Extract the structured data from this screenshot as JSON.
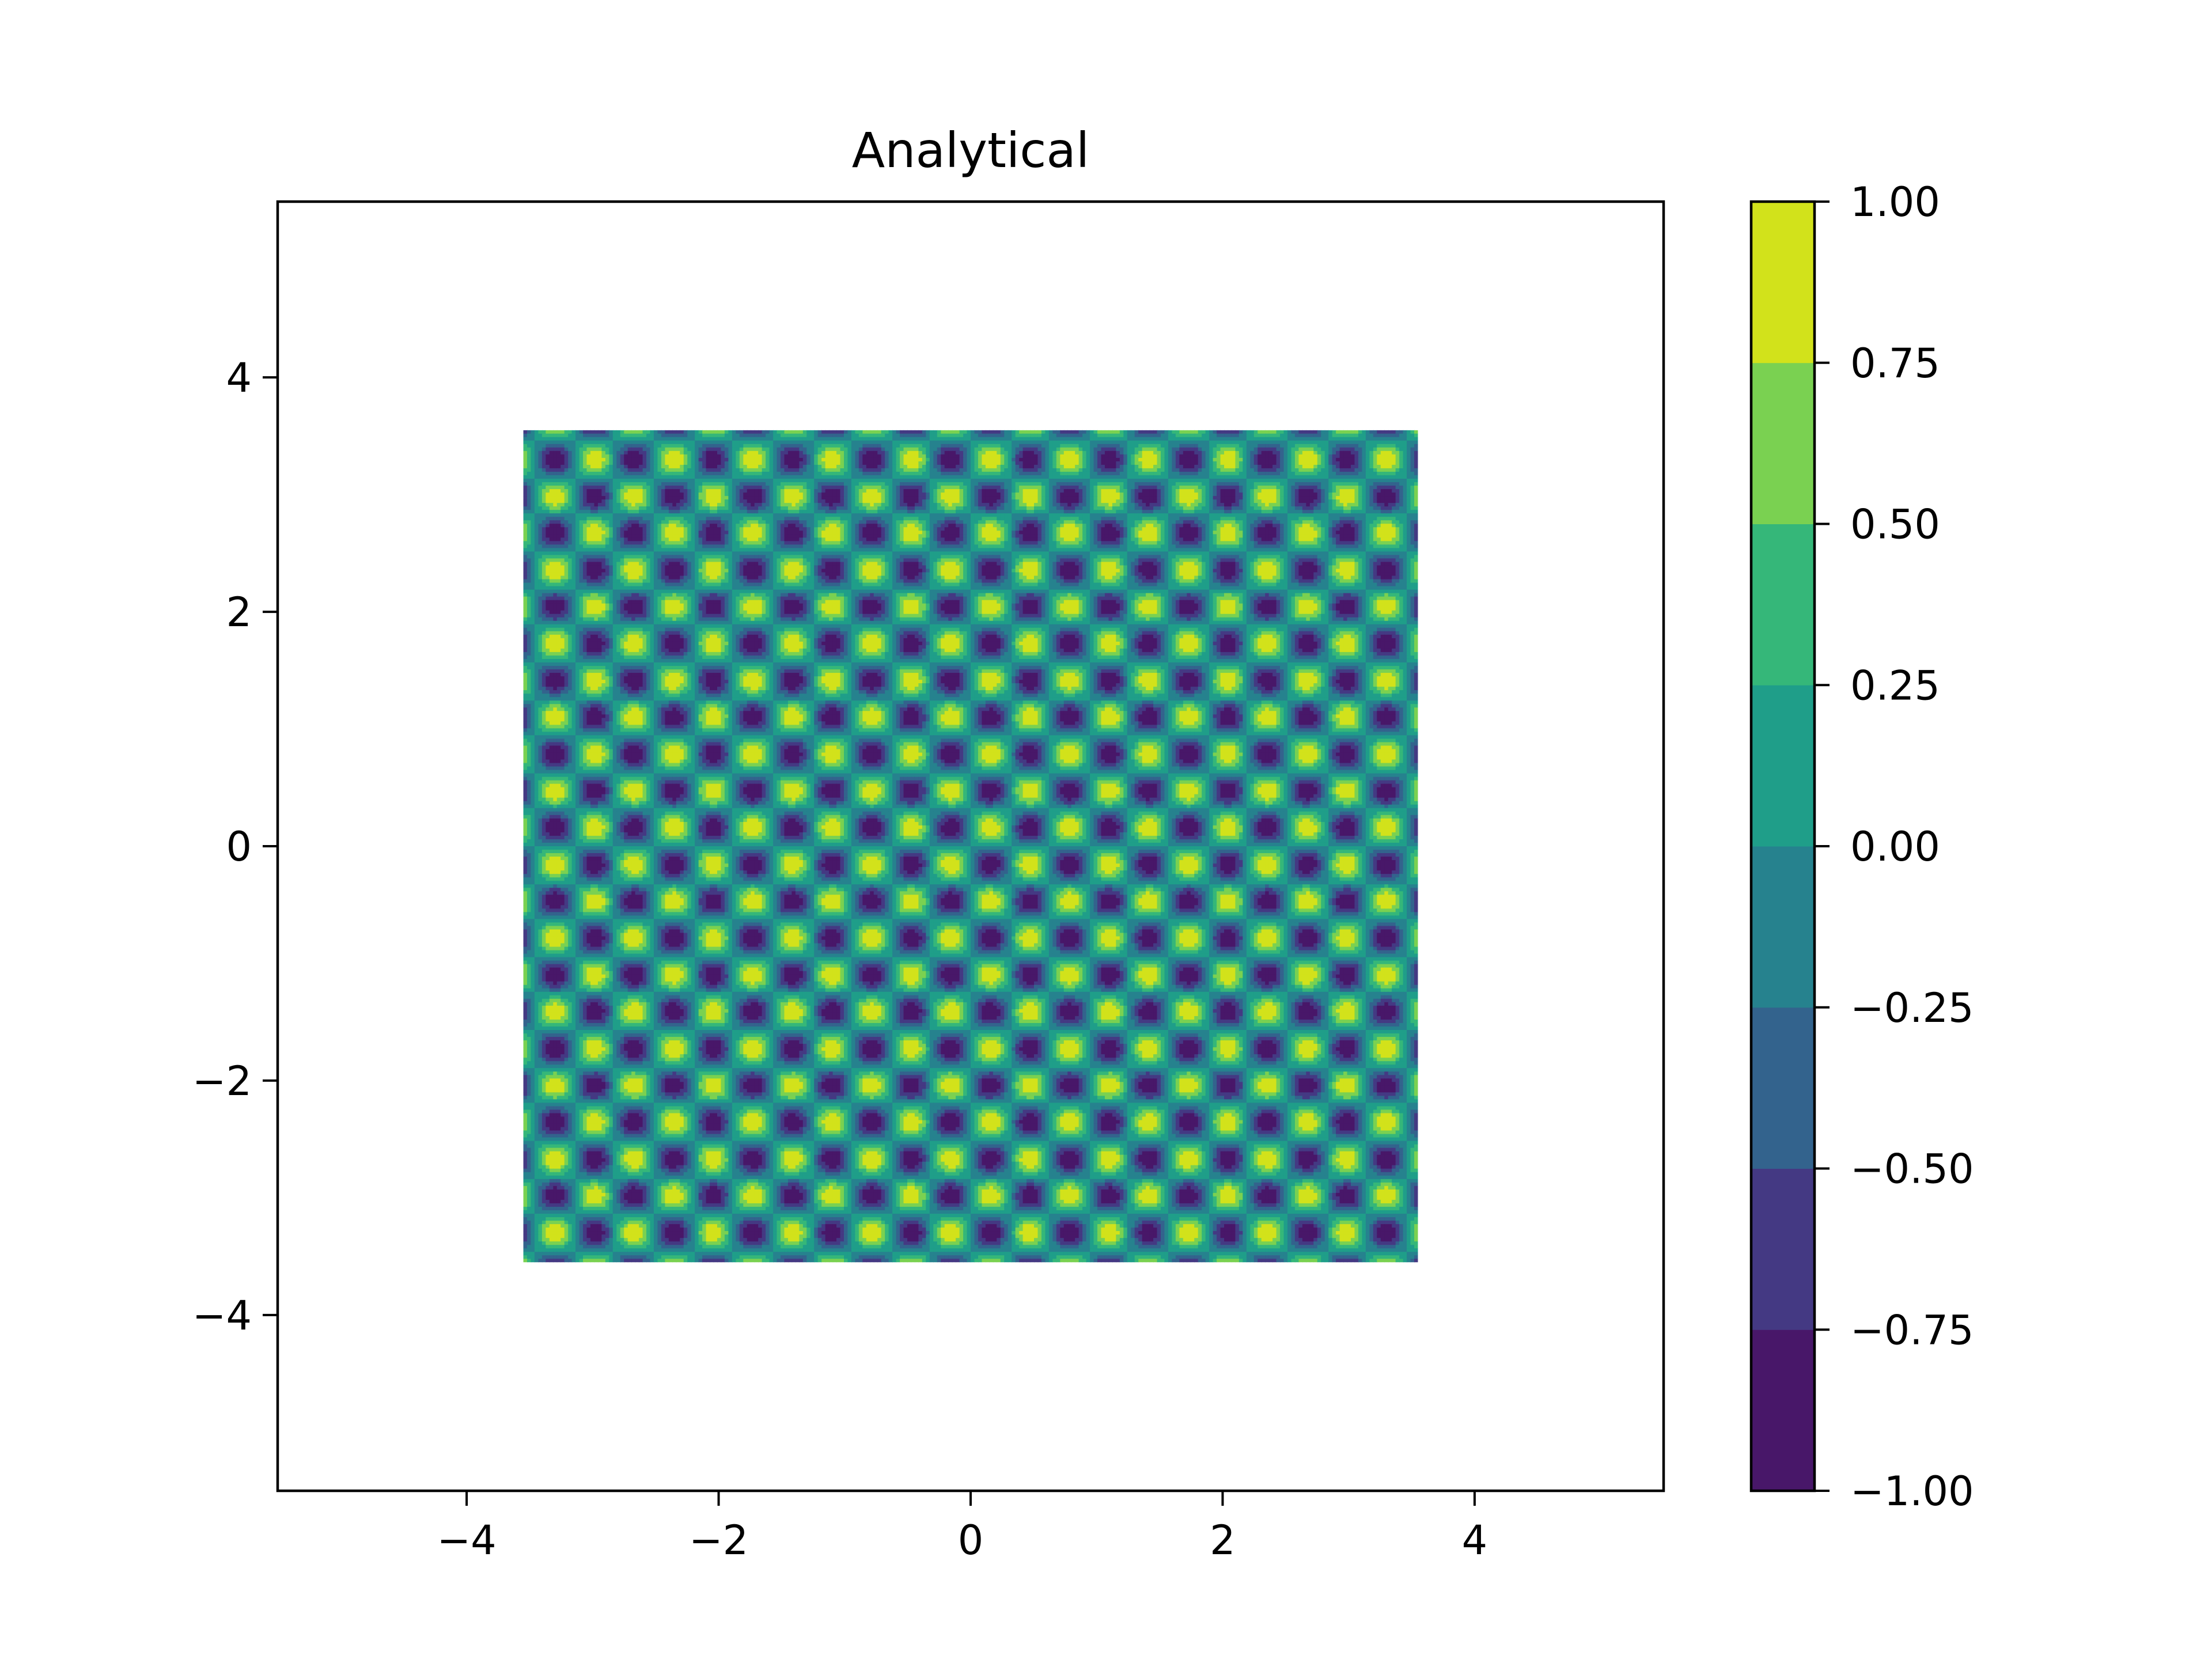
{
  "chart_data": {
    "type": "heatmap",
    "title": "Analytical",
    "xlabel": "",
    "ylabel": "",
    "xlim": [
      -5.5,
      5.5
    ],
    "ylim": [
      -5.5,
      5.5
    ],
    "x_ticks": [
      -4,
      -2,
      0,
      2,
      4
    ],
    "y_ticks": [
      -4,
      -2,
      0,
      2,
      4
    ],
    "x_tick_labels": [
      "−4",
      "−2",
      "0",
      "2",
      "4"
    ],
    "y_tick_labels": [
      "−4",
      "−2",
      "0",
      "2",
      "4"
    ],
    "data_extent": {
      "x": [
        -3.55,
        3.55
      ],
      "y": [
        -3.55,
        3.55
      ]
    },
    "field": {
      "description_shown": "periodic lattice of peaks and troughs",
      "x_period": 0.6283,
      "y_period": 0.6283,
      "min": -1.0,
      "max": 1.0
    },
    "grid": false,
    "colorbar": {
      "location": "right",
      "levels": [
        -1.0,
        -0.75,
        -0.5,
        -0.25,
        0.0,
        0.25,
        0.5,
        0.75,
        1.0
      ],
      "tick_labels": [
        "−1.00",
        "−0.75",
        "−0.50",
        "−0.25",
        "0.00",
        "0.25",
        "0.50",
        "0.75",
        "1.00"
      ],
      "band_colors": [
        "#481769",
        "#443983",
        "#33638d",
        "#26828e",
        "#1f9e89",
        "#35b779",
        "#7ad151",
        "#d2e21b"
      ],
      "colormap": "viridis"
    }
  }
}
